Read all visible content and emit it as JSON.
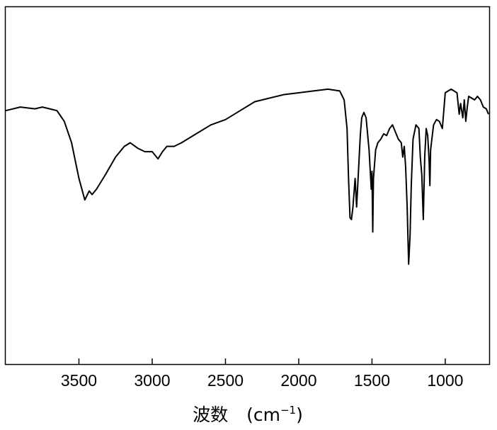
{
  "chart_data": {
    "type": "line",
    "title": "",
    "xlabel": "波数",
    "xlabel_unit_base": "(cm",
    "xlabel_unit_exp": "−1",
    "xlabel_unit_close": ")",
    "ylabel": "",
    "x_reversed": true,
    "xlim": [
      4000,
      700
    ],
    "ylim": [
      0,
      100
    ],
    "grid": false,
    "legend": "none",
    "line_color": "#000000",
    "x_ticks": [
      3500,
      3000,
      2500,
      2000,
      1500,
      1000
    ],
    "x_tick_labels": [
      "3500",
      "3000",
      "2500",
      "2000",
      "1500",
      "1000"
    ],
    "series": [
      {
        "points": [
          [
            4000,
            71
          ],
          [
            3900,
            72
          ],
          [
            3800,
            71.5
          ],
          [
            3750,
            72
          ],
          [
            3700,
            71.5
          ],
          [
            3650,
            71
          ],
          [
            3600,
            68
          ],
          [
            3550,
            62
          ],
          [
            3500,
            52
          ],
          [
            3460,
            46
          ],
          [
            3430,
            48.5
          ],
          [
            3410,
            47.5
          ],
          [
            3380,
            49
          ],
          [
            3320,
            53
          ],
          [
            3250,
            58
          ],
          [
            3190,
            61
          ],
          [
            3150,
            62
          ],
          [
            3100,
            60.5
          ],
          [
            3050,
            59.5
          ],
          [
            3000,
            59.5
          ],
          [
            2960,
            57.5
          ],
          [
            2930,
            59.5
          ],
          [
            2900,
            61
          ],
          [
            2850,
            61
          ],
          [
            2800,
            62
          ],
          [
            2700,
            64.5
          ],
          [
            2600,
            67
          ],
          [
            2500,
            68.5
          ],
          [
            2400,
            71
          ],
          [
            2300,
            73.5
          ],
          [
            2200,
            74.5
          ],
          [
            2100,
            75.5
          ],
          [
            2000,
            76
          ],
          [
            1900,
            76.5
          ],
          [
            1800,
            77
          ],
          [
            1720,
            76.5
          ],
          [
            1690,
            74
          ],
          [
            1670,
            66
          ],
          [
            1660,
            52
          ],
          [
            1650,
            41
          ],
          [
            1640,
            40.5
          ],
          [
            1630,
            44
          ],
          [
            1615,
            52
          ],
          [
            1605,
            44
          ],
          [
            1595,
            52
          ],
          [
            1580,
            64
          ],
          [
            1570,
            69
          ],
          [
            1555,
            70.5
          ],
          [
            1540,
            69
          ],
          [
            1520,
            60
          ],
          [
            1505,
            49
          ],
          [
            1500,
            54
          ],
          [
            1495,
            37
          ],
          [
            1490,
            52
          ],
          [
            1475,
            60
          ],
          [
            1460,
            62
          ],
          [
            1440,
            63
          ],
          [
            1420,
            64.5
          ],
          [
            1400,
            64
          ],
          [
            1380,
            66
          ],
          [
            1360,
            67
          ],
          [
            1340,
            65
          ],
          [
            1320,
            63
          ],
          [
            1300,
            62
          ],
          [
            1290,
            58
          ],
          [
            1280,
            61
          ],
          [
            1270,
            55
          ],
          [
            1260,
            44
          ],
          [
            1250,
            28
          ],
          [
            1240,
            36
          ],
          [
            1232,
            50
          ],
          [
            1220,
            63
          ],
          [
            1200,
            67
          ],
          [
            1180,
            66
          ],
          [
            1170,
            58
          ],
          [
            1160,
            53
          ],
          [
            1150,
            40.5
          ],
          [
            1140,
            58
          ],
          [
            1130,
            66
          ],
          [
            1120,
            64
          ],
          [
            1110,
            57
          ],
          [
            1105,
            50
          ],
          [
            1100,
            60
          ],
          [
            1080,
            67
          ],
          [
            1060,
            68.5
          ],
          [
            1040,
            68
          ],
          [
            1020,
            66
          ],
          [
            1000,
            76
          ],
          [
            980,
            76.5
          ],
          [
            960,
            77
          ],
          [
            940,
            76.5
          ],
          [
            920,
            76
          ],
          [
            905,
            70
          ],
          [
            895,
            73
          ],
          [
            880,
            69
          ],
          [
            870,
            74
          ],
          [
            860,
            68
          ],
          [
            850,
            72
          ],
          [
            840,
            75
          ],
          [
            820,
            74.5
          ],
          [
            800,
            74
          ],
          [
            780,
            75
          ],
          [
            760,
            74
          ],
          [
            740,
            72
          ],
          [
            720,
            71.5
          ],
          [
            705,
            70
          ]
        ]
      }
    ]
  }
}
